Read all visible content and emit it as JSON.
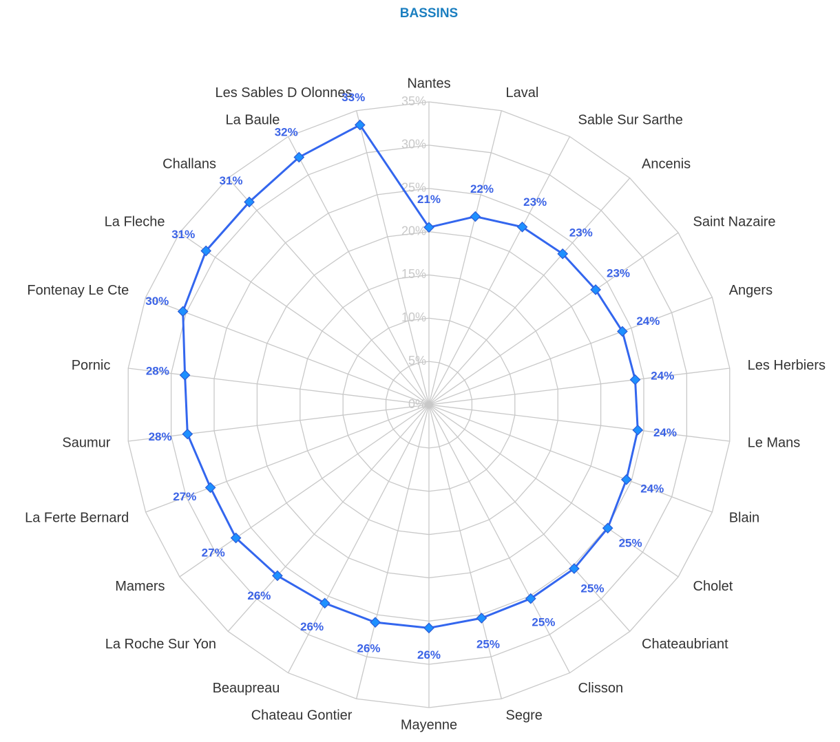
{
  "chart_data": {
    "type": "radar",
    "title": "BASSINS",
    "categories": [
      "Nantes",
      "Laval",
      "Sable Sur Sarthe",
      "Ancenis",
      "Saint Nazaire",
      "Angers",
      "Les Herbiers",
      "Le Mans",
      "Blain",
      "Cholet",
      "Chateaubriant",
      "Clisson",
      "Segre",
      "Mayenne",
      "Chateau Gontier",
      "Beaupreau",
      "La Roche Sur Yon",
      "Mamers",
      "La Ferte Bernard",
      "Saumur",
      "Pornic",
      "Fontenay Le Cte",
      "La Fleche",
      "Challans",
      "La Baule",
      "Les Sables D Olonnes"
    ],
    "series": [
      {
        "color": "#3366ee",
        "values": [
          20.5,
          22.4,
          23.2,
          23.3,
          23.4,
          23.9,
          24.0,
          24.3,
          24.4,
          25.1,
          25.3,
          25.3,
          25.4,
          25.8,
          25.9,
          25.9,
          26.4,
          27.1,
          27.0,
          28.1,
          28.4,
          30.4,
          31.3,
          31.3,
          32.3,
          33.3
        ],
        "value_labels": [
          "21%",
          "22%",
          "23%",
          "23%",
          "23%",
          "24%",
          "24%",
          "24%",
          "24%",
          "25%",
          "25%",
          "25%",
          "25%",
          "26%",
          "26%",
          "26%",
          "26%",
          "27%",
          "27%",
          "28%",
          "28%",
          "30%",
          "31%",
          "31%",
          "32%",
          "33%"
        ]
      }
    ],
    "ylim": [
      0,
      35
    ],
    "yticks": [
      {
        "value": 0,
        "label": "0%"
      },
      {
        "value": 5,
        "label": "5%"
      },
      {
        "value": 10,
        "label": "10%"
      },
      {
        "value": 15,
        "label": "15%"
      },
      {
        "value": 20,
        "label": "20%"
      },
      {
        "value": 25,
        "label": "25%"
      },
      {
        "value": 30,
        "label": "30%"
      },
      {
        "value": 35,
        "label": "35%"
      }
    ],
    "grid": true
  }
}
